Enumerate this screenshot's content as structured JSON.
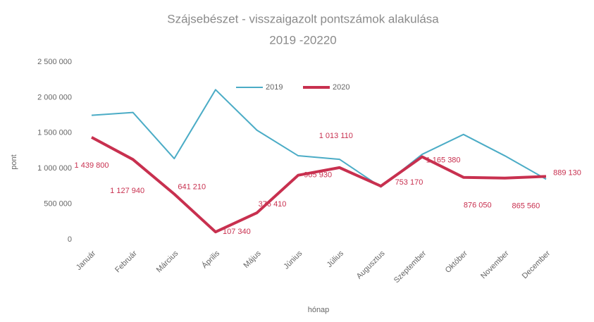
{
  "chart_data": {
    "type": "line",
    "title": "Szájsebészet - visszaigazolt pontszámok alakulása",
    "subtitle": "2019 -20220",
    "y_label": "pont",
    "x_label": "hónap",
    "categories": [
      "Január",
      "Február",
      "Március",
      "Április",
      "Május",
      "Június",
      "Július",
      "Augusztus",
      "Szeptember",
      "Október",
      "November",
      "December"
    ],
    "series": [
      {
        "name": "2019",
        "color": "#4bacc6",
        "values": [
          1750000,
          1790000,
          1140000,
          2110000,
          1540000,
          1180000,
          1130000,
          740000,
          1200000,
          1480000,
          1180000,
          850000
        ]
      },
      {
        "name": "2020",
        "color": "#c8304f",
        "values": [
          1439800,
          1127940,
          641210,
          107340,
          376410,
          905930,
          1013110,
          753170,
          1165380,
          876050,
          865560,
          889130
        ],
        "value_labels": [
          "1 439 800",
          "1 127 940",
          "641 210",
          "107 340",
          "376 410",
          "905 930",
          "1 013 110",
          "753 170",
          "1 165 380",
          "876 050",
          "865 560",
          "889 130"
        ]
      }
    ],
    "ylim": [
      0,
      2500000
    ],
    "yticks": [
      0,
      {
        "value": 500000,
        "label": "500 000"
      },
      {
        "value": 1000000,
        "label": "1 000 000"
      },
      {
        "value": 1500000,
        "label": "1 500 000"
      },
      {
        "value": 2000000,
        "label": "2 000 000"
      },
      {
        "value": 2500000,
        "label": "2 500 000"
      }
    ],
    "grid": false,
    "legend": "top"
  }
}
